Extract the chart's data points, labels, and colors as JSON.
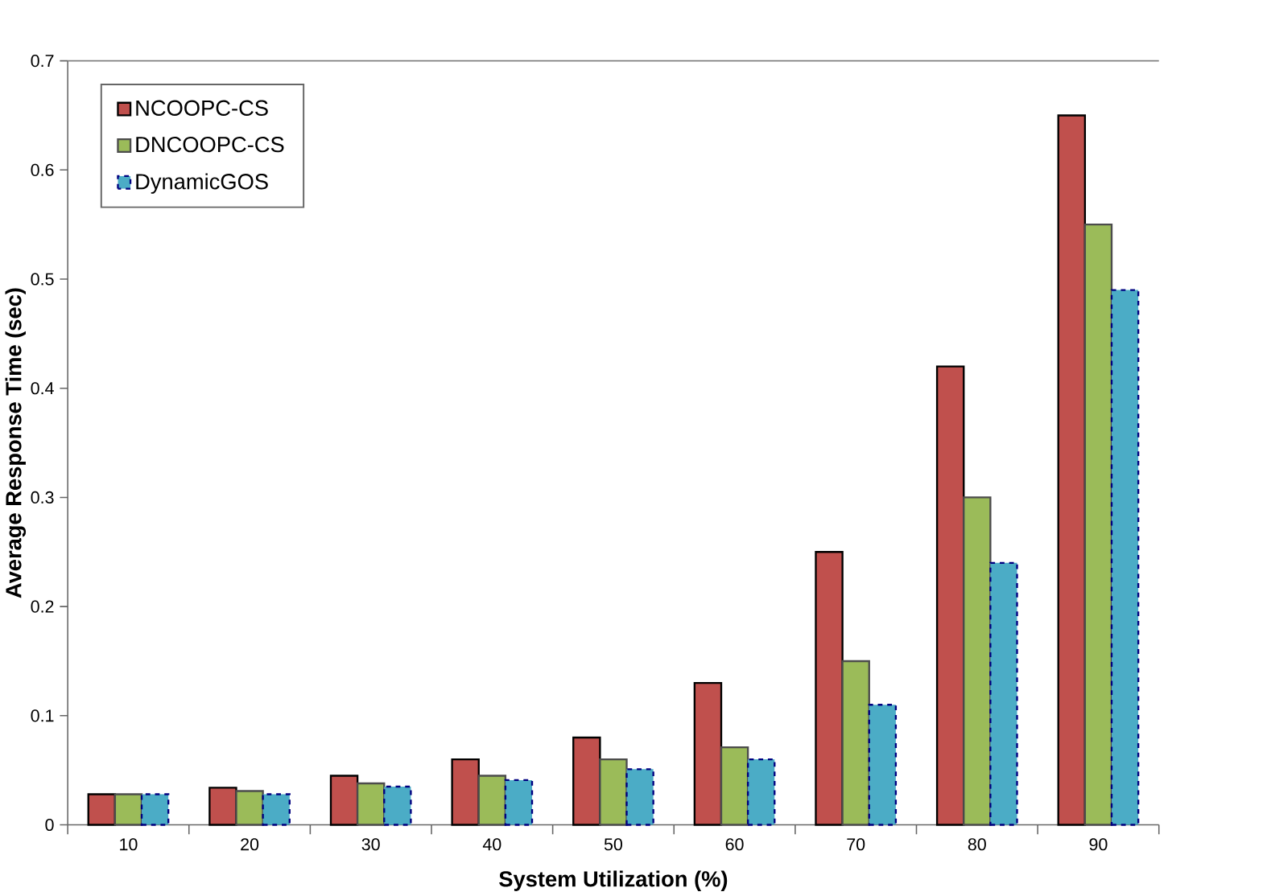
{
  "chart_data": {
    "type": "bar",
    "xlabel": "System Utilization (%)",
    "ylabel": "Average Response Time (sec)",
    "categories": [
      "10",
      "20",
      "30",
      "40",
      "50",
      "60",
      "70",
      "80",
      "90"
    ],
    "series": [
      {
        "name": "NCOOPC-CS",
        "color": "#c0504d",
        "values": [
          0.028,
          0.034,
          0.045,
          0.06,
          0.08,
          0.13,
          0.25,
          0.42,
          0.65
        ]
      },
      {
        "name": "DNCOOPC-CS",
        "color": "#9bbb59",
        "values": [
          0.028,
          0.031,
          0.038,
          0.045,
          0.06,
          0.071,
          0.15,
          0.3,
          0.55
        ]
      },
      {
        "name": "DynamicGOS",
        "color": "#4bacc6",
        "values": [
          0.028,
          0.028,
          0.035,
          0.041,
          0.051,
          0.06,
          0.11,
          0.24,
          0.49
        ]
      }
    ],
    "ylim": [
      0,
      0.7
    ],
    "yticks": [
      0,
      0.1,
      0.2,
      0.3,
      0.4,
      0.5,
      0.6,
      0.7
    ],
    "grid": false,
    "legend": "top left"
  }
}
